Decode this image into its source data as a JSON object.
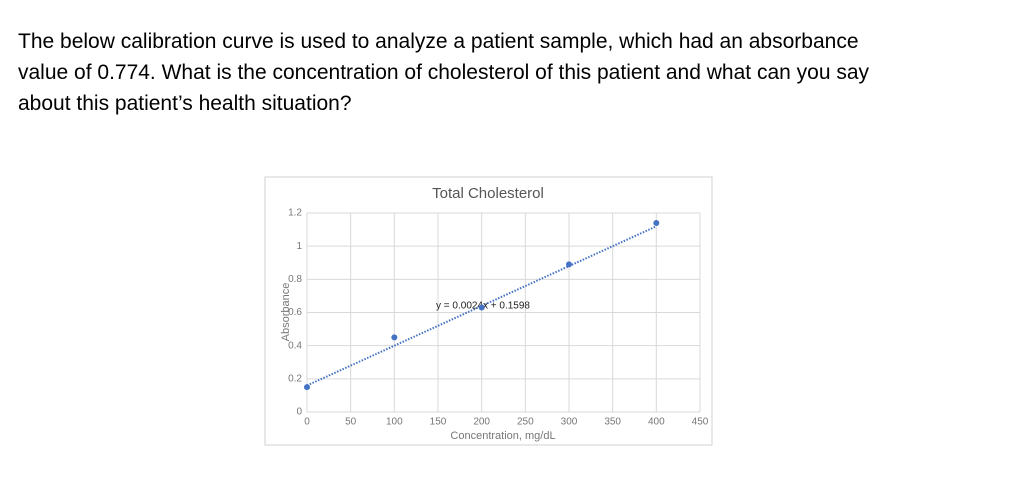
{
  "question_lines": [
    "The below calibration curve is used to analyze a patient sample, which had an absorbance",
    "value of 0.774. What is the concentration of cholesterol of this patient and what can you say",
    "about this patient’s health situation?"
  ],
  "chart_data": {
    "type": "scatter",
    "title": "Total Cholesterol",
    "x_label": "Concentration, mg/dL",
    "y_label": "Absorbance",
    "x": [
      0,
      100,
      200,
      300,
      400
    ],
    "values": [
      0.15,
      0.45,
      0.63,
      0.89,
      1.14
    ],
    "color": "#4472c4",
    "trendline": {
      "label": "y = 0.0024x + 0.1598",
      "slope": 0.0024,
      "intercept": 0.1598
    },
    "xlim": [
      0,
      450
    ],
    "ylim": [
      0,
      1.2
    ],
    "xticks": [
      0,
      50,
      100,
      150,
      200,
      250,
      300,
      350,
      400,
      450
    ],
    "yticks": [
      0,
      0.2,
      0.4,
      0.6,
      0.8,
      1,
      1.2
    ],
    "grid": true
  }
}
